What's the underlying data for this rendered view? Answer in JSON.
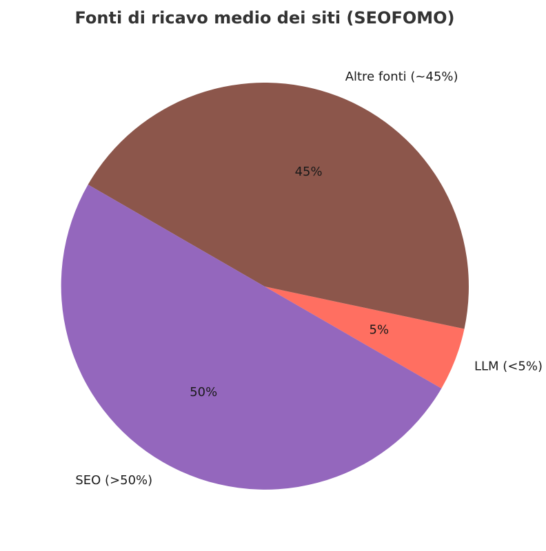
{
  "chart_data": {
    "type": "pie",
    "title": "Fonti di ricavo medio dei siti (SEOFOMO)",
    "slices": [
      {
        "label": "LLM (<5%)",
        "value": 5,
        "pct_label": "5%",
        "color": "#ff6f61"
      },
      {
        "label": "Altre fonti (~45%)",
        "value": 45,
        "pct_label": "45%",
        "color": "#8c564b"
      },
      {
        "label": "SEO (>50%)",
        "value": 50,
        "pct_label": "50%",
        "color": "#9467bd"
      }
    ],
    "start_angle_deg": -30,
    "direction": "counterclockwise"
  }
}
